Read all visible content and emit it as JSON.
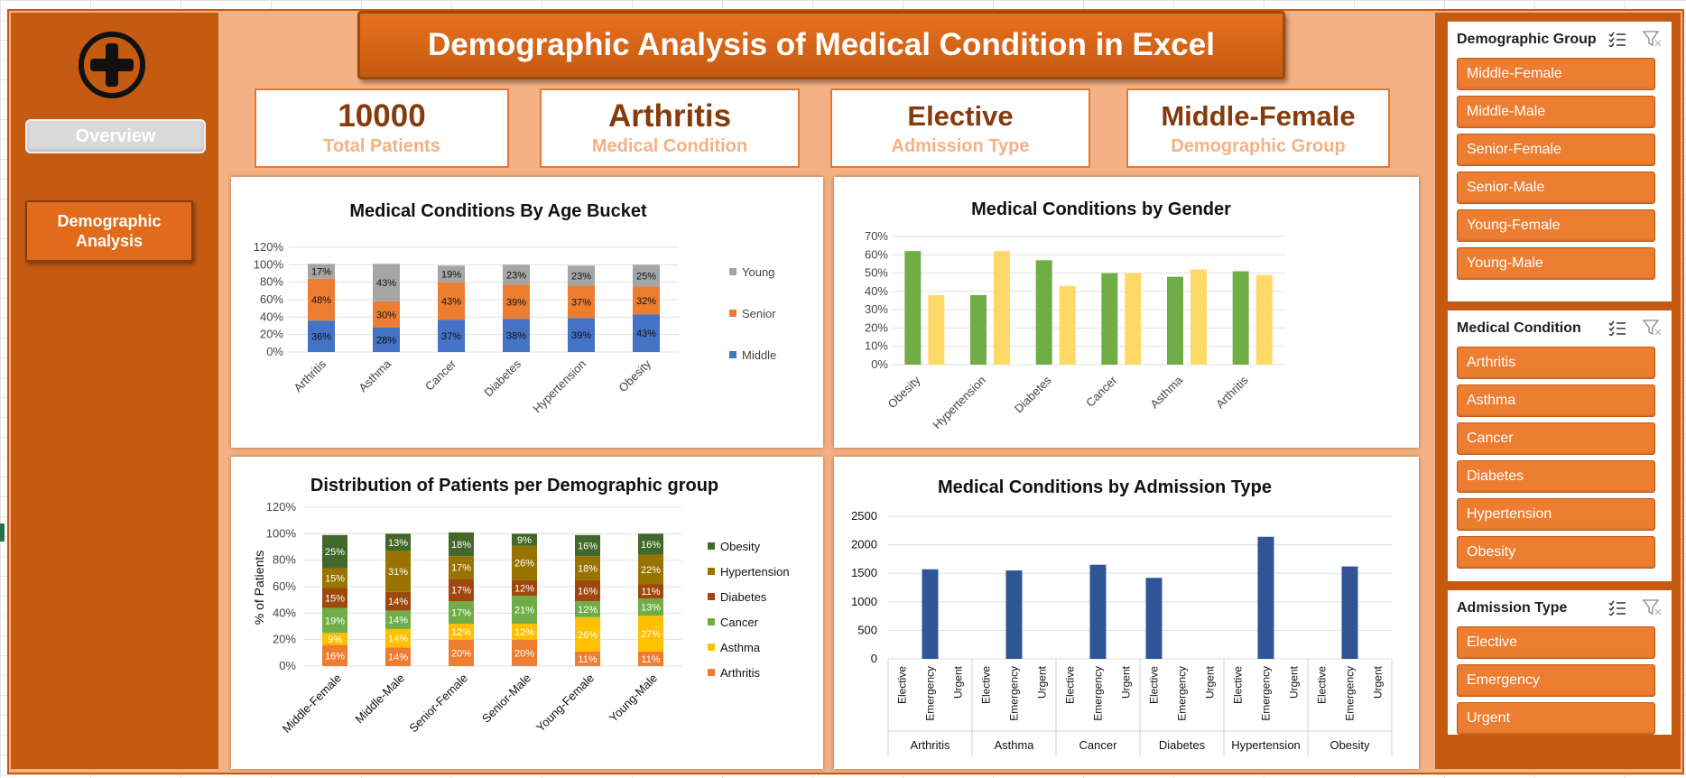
{
  "title": "Demographic Analysis of Medical Condition in Excel",
  "nav": {
    "overview": "Overview",
    "demographic": "Demographic\nAnalysis"
  },
  "kpis": [
    {
      "value": "10000",
      "label": "Total Patients"
    },
    {
      "value": "Arthritis",
      "label": "Medical Condition"
    },
    {
      "value": "Elective",
      "label": "Admission Type"
    },
    {
      "value": "Middle-Female",
      "label": "Demographic Group"
    }
  ],
  "slicers": {
    "demographic": {
      "title": "Demographic Group",
      "items": [
        "Middle-Female",
        "Middle-Male",
        "Senior-Female",
        "Senior-Male",
        "Young-Female",
        "Young-Male"
      ]
    },
    "condition": {
      "title": "Medical Condition",
      "items": [
        "Arthritis",
        "Asthma",
        "Cancer",
        "Diabetes",
        "Hypertension",
        "Obesity"
      ]
    },
    "admission": {
      "title": "Admission Type",
      "items": [
        "Elective",
        "Emergency",
        "Urgent"
      ]
    }
  },
  "colors": {
    "accent": "#c55a11",
    "panel_bg": "#f4b183",
    "slicer_button": "#ed7d31",
    "kpi_value": "#843c0c"
  },
  "icons": [
    "medical-cross-icon",
    "multi-select-icon",
    "clear-filter-icon"
  ],
  "chart_data": [
    {
      "id": "age",
      "type": "bar",
      "stacked": "percent",
      "title": "Medical Conditions By Age Bucket",
      "categories": [
        "Arthritis",
        "Asthma",
        "Cancer",
        "Diabetes",
        "Hypertension",
        "Obesity"
      ],
      "series": [
        {
          "name": "Middle",
          "color": "#4472c4",
          "values": [
            36,
            28,
            37,
            38,
            39,
            43
          ]
        },
        {
          "name": "Senior",
          "color": "#ed7d31",
          "values": [
            48,
            30,
            43,
            39,
            37,
            32
          ]
        },
        {
          "name": "Young",
          "color": "#a5a5a5",
          "values": [
            17,
            43,
            19,
            23,
            23,
            25
          ]
        }
      ],
      "yticks": [
        "0%",
        "20%",
        "40%",
        "60%",
        "80%",
        "100%",
        "120%"
      ],
      "ylim": [
        0,
        120
      ],
      "legend": "right"
    },
    {
      "id": "gender",
      "type": "bar",
      "title": "Medical Conditions by Gender",
      "categories": [
        "Obesity",
        "Hypertension",
        "Diabetes",
        "Cancer",
        "Asthma",
        "Arthritis"
      ],
      "series": [
        {
          "color": "#70ad47",
          "values": [
            62,
            38,
            57,
            50,
            48,
            51
          ]
        },
        {
          "color": "#ffd966",
          "values": [
            38,
            62,
            43,
            50,
            52,
            49
          ]
        }
      ],
      "yticks": [
        "0%",
        "10%",
        "20%",
        "30%",
        "40%",
        "50%",
        "60%",
        "70%"
      ],
      "ylim": [
        0,
        70
      ],
      "grid": true
    },
    {
      "id": "demographic",
      "type": "bar",
      "stacked": "percent",
      "title": "Distribution of Patients per Demographic group",
      "ylabel": "% of Patients",
      "categories": [
        "Middle-Female",
        "Middle-Male",
        "Senior-Female",
        "Senior-Male",
        "Young-Female",
        "Young-Male"
      ],
      "series": [
        {
          "name": "Arthritis",
          "color": "#ed7d31",
          "values": [
            16,
            14,
            20,
            20,
            11,
            11
          ]
        },
        {
          "name": "Asthma",
          "color": "#ffc000",
          "values": [
            9,
            14,
            12,
            12,
            26,
            27
          ]
        },
        {
          "name": "Cancer",
          "color": "#70ad47",
          "values": [
            19,
            14,
            17,
            21,
            12,
            13
          ]
        },
        {
          "name": "Diabetes",
          "color": "#9e480e",
          "values": [
            15,
            14,
            17,
            12,
            16,
            11
          ]
        },
        {
          "name": "Hypertension",
          "color": "#997300",
          "values": [
            15,
            31,
            17,
            26,
            18,
            22
          ]
        },
        {
          "name": "Obesity",
          "color": "#43682b",
          "values": [
            25,
            13,
            18,
            9,
            16,
            16
          ]
        }
      ],
      "yticks": [
        "0%",
        "20%",
        "40%",
        "60%",
        "80%",
        "100%",
        "120%"
      ],
      "ylim": [
        0,
        120
      ],
      "legend": "right"
    },
    {
      "id": "admission",
      "type": "bar",
      "title": "Medical Conditions by Admission Type",
      "groups": [
        "Arthritis",
        "Asthma",
        "Cancer",
        "Diabetes",
        "Hypertension",
        "Obesity"
      ],
      "subcategories": [
        "Elective",
        "Emergency",
        "Urgent"
      ],
      "values": [
        [
          0,
          1570,
          0
        ],
        [
          0,
          1550,
          0
        ],
        [
          0,
          1650,
          0
        ],
        [
          1420,
          0,
          0
        ],
        [
          0,
          2140,
          0
        ],
        [
          0,
          1620,
          0
        ]
      ],
      "color": "#2f5597",
      "yticks": [
        "0",
        "500",
        "1000",
        "1500",
        "2000",
        "2500"
      ],
      "ylim": [
        0,
        2500
      ],
      "grid": true
    }
  ]
}
